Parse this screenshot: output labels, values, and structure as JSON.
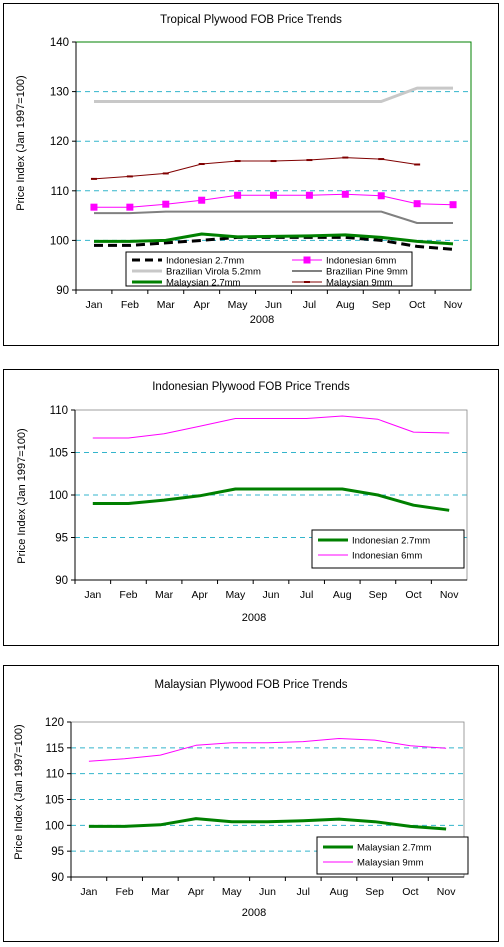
{
  "chart_data": [
    {
      "type": "line",
      "title": "Tropical Plywood FOB Price Trends",
      "xlabel": "2008",
      "ylabel": "Price Index (Jan 1997=100)",
      "ylim": [
        90,
        140
      ],
      "yticks": [
        90,
        100,
        110,
        120,
        130,
        140
      ],
      "categories": [
        "Jan",
        "Feb",
        "Mar",
        "Apr",
        "May",
        "Jun",
        "Jul",
        "Aug",
        "Sep",
        "Oct",
        "Nov"
      ],
      "grid": "horizontal dashed",
      "legend": "bottom, inside plot",
      "series": [
        {
          "name": "Indonesian 2.7mm",
          "color": "#000000",
          "style": "dashed",
          "values": [
            99,
            99,
            99.5,
            100,
            100.6,
            100.6,
            100.6,
            100.6,
            100,
            98.8,
            98.2
          ]
        },
        {
          "name": "Indonesian 6mm",
          "color": "#ff00ff",
          "marker": "square",
          "values": [
            106.7,
            106.7,
            107.3,
            108.1,
            109.1,
            109.1,
            109.1,
            109.3,
            109,
            107.4,
            107.2
          ]
        },
        {
          "name": "Brazilian Virola 5.2mm",
          "color": "#c8c8c8",
          "values": [
            128,
            128,
            128,
            128,
            128,
            128,
            128,
            128,
            128,
            130.7,
            130.7
          ]
        },
        {
          "name": "Brazilian Pine 9mm",
          "color": "#808080",
          "values": [
            105.5,
            105.5,
            105.8,
            105.8,
            105.8,
            105.8,
            105.8,
            105.8,
            105.8,
            103.5,
            103.5
          ]
        },
        {
          "name": "Malaysian 2.7mm",
          "color": "#008000",
          "values": [
            99.8,
            99.8,
            100,
            101.3,
            100.7,
            100.8,
            100.9,
            101.1,
            100.6,
            99.8,
            99.3
          ]
        },
        {
          "name": "Malaysian 9mm",
          "color": "#800000",
          "marker": "dash",
          "values": [
            112.4,
            112.9,
            113.5,
            115.4,
            116,
            116,
            116.2,
            116.7,
            116.4,
            115.3,
            null
          ]
        }
      ]
    },
    {
      "type": "line",
      "title": "Indonesian Plywood FOB Price Trends",
      "xlabel": "2008",
      "ylabel": "Price Index (Jan 1997=100)",
      "ylim": [
        90,
        110
      ],
      "yticks": [
        90,
        95,
        100,
        105,
        110
      ],
      "categories": [
        "Jan",
        "Feb",
        "Mar",
        "Apr",
        "May",
        "Jun",
        "Jul",
        "Aug",
        "Sep",
        "Oct",
        "Nov"
      ],
      "grid": "horizontal dashed",
      "legend": "bottom-right",
      "series": [
        {
          "name": "Indonesian 2.7mm",
          "color": "#008000",
          "values": [
            99,
            99,
            99.4,
            99.9,
            100.7,
            100.7,
            100.7,
            100.7,
            100,
            98.8,
            98.2
          ]
        },
        {
          "name": "Indonesian 6mm",
          "color": "#ff00ff",
          "values": [
            106.7,
            106.7,
            107.2,
            108.1,
            109,
            109,
            109,
            109.3,
            108.9,
            107.4,
            107.3
          ]
        }
      ]
    },
    {
      "type": "line",
      "title": "Malaysian Plywood FOB Price Trends",
      "xlabel": "2008",
      "ylabel": "Price Index (Jan 1997=100)",
      "ylim": [
        90,
        120
      ],
      "yticks": [
        90,
        95,
        100,
        105,
        110,
        115,
        120
      ],
      "categories": [
        "Jan",
        "Feb",
        "Mar",
        "Apr",
        "May",
        "Jun",
        "Jul",
        "Aug",
        "Sep",
        "Oct",
        "Nov"
      ],
      "grid": "horizontal dashed",
      "legend": "bottom-right",
      "series": [
        {
          "name": "Malaysian 2.7mm",
          "color": "#008000",
          "values": [
            99.8,
            99.8,
            100.1,
            101.3,
            100.7,
            100.7,
            100.9,
            101.2,
            100.7,
            99.8,
            99.3
          ]
        },
        {
          "name": "Malaysian 9mm",
          "color": "#ff00ff",
          "values": [
            112.4,
            112.9,
            113.6,
            115.5,
            116,
            116,
            116.2,
            116.8,
            116.5,
            115.4,
            114.9
          ]
        }
      ]
    }
  ]
}
